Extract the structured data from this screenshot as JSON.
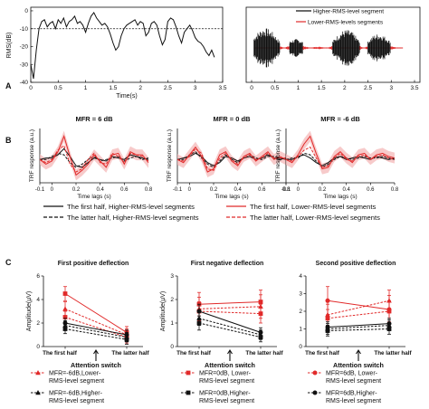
{
  "panels": {
    "A": "A",
    "B": "B",
    "C": "C"
  },
  "colors": {
    "black": "#111111",
    "red": "#e12a2a",
    "pink": "#f4b8b8",
    "grey": "#9a9a9a"
  },
  "chart_data": [
    {
      "id": "rms",
      "type": "line",
      "xlabel": "Time(s)",
      "ylabel": "RMS(dB)",
      "xlim": [
        0,
        3.5
      ],
      "ylim": [
        -40,
        2
      ],
      "xticks": [
        "0",
        "0.5",
        "1",
        "1.5",
        "2",
        "2.5",
        "3",
        "3.5"
      ],
      "xtick_values": [
        0,
        0.5,
        1,
        1.5,
        2,
        2.5,
        3,
        3.5
      ],
      "yticks": [
        "0",
        "-10",
        "-20",
        "-30",
        "-40"
      ],
      "ytick_values": [
        0,
        -10,
        -20,
        -30,
        -40
      ],
      "threshold": -10,
      "series": [
        {
          "x": [
            0.0,
            0.05,
            0.1,
            0.15,
            0.2,
            0.25,
            0.3,
            0.35,
            0.4,
            0.45,
            0.5,
            0.55,
            0.6,
            0.65,
            0.7,
            0.75,
            0.8,
            0.85,
            0.9,
            0.95,
            1.0,
            1.05,
            1.1,
            1.15,
            1.2,
            1.25,
            1.3,
            1.35,
            1.4,
            1.45,
            1.5,
            1.55,
            1.6,
            1.65,
            1.7,
            1.75,
            1.8,
            1.85,
            1.9,
            1.95,
            2.0,
            2.05,
            2.1,
            2.15,
            2.2,
            2.25,
            2.3,
            2.35,
            2.4,
            2.45,
            2.5,
            2.55,
            2.6,
            2.65,
            2.7,
            2.75,
            2.8,
            2.85,
            2.9,
            2.95,
            3.0,
            3.05,
            3.1,
            3.15,
            3.2,
            3.25,
            3.3,
            3.35
          ],
          "y": [
            -30,
            -38,
            -22,
            -10,
            -6,
            -5,
            -9,
            -7,
            -6,
            -10,
            -5,
            -7,
            -4,
            -9,
            -6,
            -5,
            -3,
            -7,
            -6,
            -8,
            -12,
            -7,
            -3,
            -1,
            -4,
            -6,
            -8,
            -7,
            -9,
            -13,
            -18,
            -22,
            -20,
            -14,
            -10,
            -8,
            -7,
            -6,
            -5,
            -8,
            -6,
            -7,
            -14,
            -12,
            -7,
            -6,
            -8,
            -14,
            -19,
            -16,
            -6,
            -4,
            -5,
            -9,
            -14,
            -18,
            -12,
            -10,
            -8,
            -11,
            -15,
            -17,
            -18,
            -20,
            -23,
            -25,
            -22,
            -26
          ]
        }
      ]
    },
    {
      "id": "waveform",
      "type": "area",
      "xticks": [
        "0",
        "0.5",
        "1",
        "1.5",
        "2",
        "2.5",
        "3",
        "3.5"
      ],
      "xtick_values": [
        0,
        0.5,
        1,
        1.5,
        2,
        2.5,
        3,
        3.5
      ],
      "legend_position": "top",
      "series": [
        {
          "name": "Higher-RMS-level segment"
        },
        {
          "name": "Lower-RMS-levels segments"
        }
      ]
    },
    {
      "id": "trf_p6",
      "type": "line",
      "title": "MFR = 6 dB",
      "xlabel": "Time lags (s)",
      "ylabel": "TRF response (a.u.)",
      "xlim": [
        -0.1,
        0.8
      ],
      "xticks": [
        "-0.1",
        "0",
        "0.2",
        "0.4",
        "0.6",
        "0.8"
      ],
      "xtick_values": [
        -0.1,
        0,
        0.2,
        0.4,
        0.6,
        0.8
      ],
      "ylim": [
        -1.5,
        2
      ],
      "x": [
        -0.1,
        -0.05,
        0.0,
        0.05,
        0.1,
        0.15,
        0.2,
        0.25,
        0.3,
        0.35,
        0.4,
        0.45,
        0.5,
        0.55,
        0.6,
        0.65,
        0.7,
        0.75,
        0.8
      ],
      "series": [
        {
          "name": "The first half, Higher-RMS-level segments",
          "values": [
            0.0,
            0.1,
            0.1,
            0.3,
            0.7,
            0.2,
            -0.4,
            -0.5,
            -0.2,
            0.1,
            0.0,
            -0.1,
            0.2,
            0.1,
            0.0,
            0.3,
            0.2,
            0.1,
            0.0
          ]
        },
        {
          "name": "The latter half, Higher-RMS-level segments",
          "values": [
            0.0,
            0.0,
            0.2,
            0.4,
            0.3,
            -0.2,
            -0.5,
            -0.3,
            0.0,
            0.2,
            -0.1,
            0.0,
            0.1,
            0.2,
            -0.1,
            0.1,
            0.2,
            0.0,
            0.1
          ]
        },
        {
          "name": "The first half, Lower-RMS-level segments",
          "values": [
            0.0,
            -0.3,
            -0.1,
            0.5,
            1.5,
            0.2,
            -1.0,
            -0.7,
            -0.3,
            0.3,
            -0.1,
            -0.5,
            0.3,
            0.4,
            -0.3,
            0.5,
            0.3,
            0.3,
            -0.2
          ]
        },
        {
          "name": "The latter half, Lower-RMS-level segments",
          "values": [
            0.0,
            -0.2,
            0.0,
            0.6,
            0.9,
            -0.3,
            -0.8,
            -0.6,
            0.0,
            0.4,
            -0.2,
            -0.3,
            0.4,
            0.2,
            -0.2,
            0.4,
            0.3,
            0.2,
            -0.1
          ]
        }
      ]
    },
    {
      "id": "trf_0",
      "type": "line",
      "title": "MFR = 0 dB",
      "xlabel": "Time lags (s)",
      "ylabel": "TRF response (a.u.)",
      "xlim": [
        -0.1,
        0.8
      ],
      "xticks": [
        "-0.1",
        "0",
        "0.2",
        "0.4",
        "0.6",
        "0.8"
      ],
      "xtick_values": [
        -0.1,
        0,
        0.2,
        0.4,
        0.6,
        0.8
      ],
      "ylim": [
        -1.5,
        2
      ],
      "x": [
        -0.1,
        -0.05,
        0.0,
        0.05,
        0.1,
        0.15,
        0.2,
        0.25,
        0.3,
        0.35,
        0.4,
        0.45,
        0.5,
        0.55,
        0.6,
        0.65,
        0.7,
        0.75,
        0.8
      ],
      "series": [
        {
          "name": "The first half, Higher-RMS-level segments",
          "values": [
            0.0,
            0.1,
            0.2,
            0.4,
            0.2,
            -0.2,
            -0.4,
            -0.2,
            0.2,
            0.1,
            -0.1,
            0.1,
            0.2,
            0.0,
            0.1,
            0.3,
            0.1,
            0.0,
            0.1
          ]
        },
        {
          "name": "The latter half, Higher-RMS-level segments",
          "values": [
            0.0,
            0.0,
            0.3,
            0.5,
            0.1,
            -0.3,
            -0.5,
            -0.1,
            0.3,
            0.0,
            -0.2,
            0.1,
            0.3,
            0.1,
            0.0,
            0.2,
            0.2,
            0.1,
            0.0
          ]
        },
        {
          "name": "The first half, Lower-RMS-level segments",
          "values": [
            0.0,
            -0.2,
            0.3,
            0.8,
            0.2,
            -0.8,
            -0.6,
            0.3,
            0.5,
            -0.1,
            -0.4,
            0.2,
            0.4,
            -0.1,
            0.2,
            0.5,
            0.0,
            0.2,
            0.0
          ]
        },
        {
          "name": "The latter half, Lower-RMS-level segments",
          "values": [
            0.0,
            -0.1,
            0.2,
            0.7,
            0.4,
            -0.6,
            -0.7,
            0.1,
            0.4,
            0.0,
            -0.3,
            0.1,
            0.3,
            0.0,
            0.1,
            0.4,
            0.1,
            0.1,
            0.1
          ]
        }
      ]
    },
    {
      "id": "trf_m6",
      "type": "line",
      "title": "MFR = -6 dB",
      "xlabel": "Time lags (s)",
      "ylabel": "TRF response (a.u.)",
      "xlim": [
        -0.1,
        0.8
      ],
      "xticks": [
        "-0.1",
        "0",
        "0.2",
        "0.4",
        "0.6",
        "0.8"
      ],
      "xtick_values": [
        -0.1,
        0,
        0.2,
        0.4,
        0.6,
        0.8
      ],
      "ylim": [
        -1.5,
        2
      ],
      "x": [
        -0.1,
        -0.05,
        0.0,
        0.05,
        0.1,
        0.15,
        0.2,
        0.25,
        0.3,
        0.35,
        0.4,
        0.45,
        0.5,
        0.55,
        0.6,
        0.65,
        0.7,
        0.75,
        0.8
      ],
      "series": [
        {
          "name": "The first half, Higher-RMS-level segments",
          "values": [
            0.0,
            0.0,
            0.2,
            0.3,
            0.1,
            -0.2,
            -0.4,
            -0.2,
            0.1,
            0.2,
            0.0,
            0.1,
            0.2,
            0.1,
            0.0,
            0.2,
            0.1,
            0.0,
            0.1
          ]
        },
        {
          "name": "The latter half, Higher-RMS-level segments",
          "values": [
            0.0,
            0.1,
            0.1,
            0.4,
            0.3,
            -0.1,
            -0.5,
            -0.3,
            0.0,
            0.2,
            0.1,
            0.0,
            0.1,
            0.2,
            0.1,
            0.1,
            0.2,
            0.1,
            0.0
          ]
        },
        {
          "name": "The first half, Lower-RMS-level segments",
          "values": [
            0.0,
            -0.2,
            0.3,
            1.0,
            1.5,
            0.4,
            -0.6,
            -0.5,
            0.2,
            0.5,
            0.1,
            -0.2,
            0.3,
            0.4,
            0.0,
            0.3,
            0.4,
            0.2,
            0.1
          ]
        },
        {
          "name": "The latter half, Lower-RMS-level segments",
          "values": [
            0.0,
            -0.1,
            0.2,
            0.6,
            0.8,
            0.1,
            -0.5,
            -0.4,
            0.1,
            0.4,
            0.0,
            -0.1,
            0.2,
            0.3,
            0.0,
            0.2,
            0.3,
            0.1,
            0.0
          ]
        }
      ]
    },
    {
      "id": "amp1",
      "type": "line",
      "title": "First positive deflection",
      "ylabel": "Amplitude(μV)",
      "categories": [
        "The first half",
        "The latter half"
      ],
      "annotation": "Attention switch",
      "ylim": [
        0,
        6
      ],
      "yticks": [
        "0",
        "2",
        "4",
        "6"
      ],
      "ytick_values": [
        0,
        2,
        4,
        6
      ],
      "series": [
        {
          "marker": "square",
          "color": "red",
          "dash": false,
          "values": [
            4.5,
            1.2
          ],
          "err": [
            0.6,
            0.5
          ]
        },
        {
          "marker": "triangle",
          "color": "red",
          "dash": true,
          "values": [
            3.2,
            1.0
          ],
          "err": [
            0.6,
            0.5
          ]
        },
        {
          "marker": "square",
          "color": "red",
          "dash": true,
          "values": [
            2.5,
            0.8
          ],
          "err": [
            0.5,
            0.5
          ]
        },
        {
          "marker": "circle",
          "color": "black",
          "dash": false,
          "values": [
            2.0,
            1.0
          ],
          "err": [
            0.4,
            0.4
          ]
        },
        {
          "marker": "triangle",
          "color": "black",
          "dash": true,
          "values": [
            1.8,
            0.8
          ],
          "err": [
            0.4,
            0.4
          ]
        },
        {
          "marker": "square",
          "color": "black",
          "dash": true,
          "values": [
            1.5,
            0.6
          ],
          "err": [
            0.4,
            0.4
          ]
        }
      ]
    },
    {
      "id": "amp2",
      "type": "line",
      "title": "First negative deflection",
      "ylabel": "Amplitude(μV)",
      "categories": [
        "The first half",
        "The latter half"
      ],
      "annotation": "Attention switch",
      "ylim": [
        0,
        3
      ],
      "yticks": [
        "0",
        "1",
        "2",
        "3"
      ],
      "ytick_values": [
        0,
        1,
        2,
        3
      ],
      "series": [
        {
          "marker": "square",
          "color": "red",
          "dash": false,
          "values": [
            1.8,
            1.9
          ],
          "err": [
            0.5,
            0.5
          ]
        },
        {
          "marker": "triangle",
          "color": "red",
          "dash": true,
          "values": [
            1.6,
            1.7
          ],
          "err": [
            0.5,
            0.5
          ]
        },
        {
          "marker": "square",
          "color": "red",
          "dash": true,
          "values": [
            1.5,
            1.4
          ],
          "err": [
            0.4,
            0.4
          ]
        },
        {
          "marker": "circle",
          "color": "black",
          "dash": false,
          "values": [
            1.5,
            0.6
          ],
          "err": [
            0.3,
            0.2
          ]
        },
        {
          "marker": "triangle",
          "color": "black",
          "dash": true,
          "values": [
            1.2,
            0.5
          ],
          "err": [
            0.3,
            0.2
          ]
        },
        {
          "marker": "square",
          "color": "black",
          "dash": true,
          "values": [
            1.0,
            0.4
          ],
          "err": [
            0.3,
            0.2
          ]
        }
      ]
    },
    {
      "id": "amp3",
      "type": "line",
      "title": "Second positive deflection",
      "categories": [
        "The first half",
        "The latter half"
      ],
      "annotation": "Attention switch",
      "ylim": [
        0,
        4
      ],
      "yticks": [
        "0",
        "1",
        "2",
        "3",
        "4"
      ],
      "ytick_values": [
        0,
        1,
        2,
        3,
        4
      ],
      "series": [
        {
          "marker": "circle",
          "color": "red",
          "dash": false,
          "values": [
            2.6,
            2.1
          ],
          "err": [
            0.8,
            0.8
          ]
        },
        {
          "marker": "triangle",
          "color": "red",
          "dash": true,
          "values": [
            1.8,
            2.6
          ],
          "err": [
            0.6,
            0.6
          ]
        },
        {
          "marker": "square",
          "color": "red",
          "dash": true,
          "values": [
            1.6,
            2.0
          ],
          "err": [
            0.5,
            0.6
          ]
        },
        {
          "marker": "circle",
          "color": "black",
          "dash": false,
          "values": [
            1.1,
            1.3
          ],
          "err": [
            0.3,
            0.3
          ]
        },
        {
          "marker": "triangle",
          "color": "black",
          "dash": true,
          "values": [
            1.0,
            1.2
          ],
          "err": [
            0.3,
            0.3
          ]
        },
        {
          "marker": "square",
          "color": "black",
          "dash": true,
          "values": [
            0.9,
            1.0
          ],
          "err": [
            0.3,
            0.3
          ]
        }
      ]
    }
  ],
  "legendB": [
    {
      "label": "The first half, Higher-RMS-level segments",
      "color": "black",
      "dash": false
    },
    {
      "label": "The latter half, Higher-RMS-level segments",
      "color": "black",
      "dash": true
    },
    {
      "label": "The first half, Lower-RMS-level segments",
      "color": "red",
      "dash": false
    },
    {
      "label": "The latter half, Lower-RMS-level segments",
      "color": "red",
      "dash": true
    }
  ],
  "legendC": [
    {
      "id": "c1",
      "line1": "MFR=-6dB,Lower-",
      "line2": "RMS-level segment",
      "marker": "triangle",
      "color": "red"
    },
    {
      "id": "c1",
      "line1": "MFR=-6dB,Higher-",
      "line2": "RMS-level segment",
      "marker": "triangle",
      "color": "black"
    },
    {
      "id": "c2",
      "line1": "MFR=0dB, Lower-",
      "line2": "RMS-level segment",
      "marker": "square",
      "color": "red"
    },
    {
      "id": "c2",
      "line1": "MFR=0dB,Higher-",
      "line2": "RMS-level segment",
      "marker": "square",
      "color": "black"
    },
    {
      "id": "c3",
      "line1": "MFR=6dB, Lower-",
      "line2": "RMS-level segment",
      "marker": "circle",
      "color": "red"
    },
    {
      "id": "c3",
      "line1": "MFR=6dB,Higher-",
      "line2": "RMS-level segment",
      "marker": "circle",
      "color": "black"
    }
  ]
}
